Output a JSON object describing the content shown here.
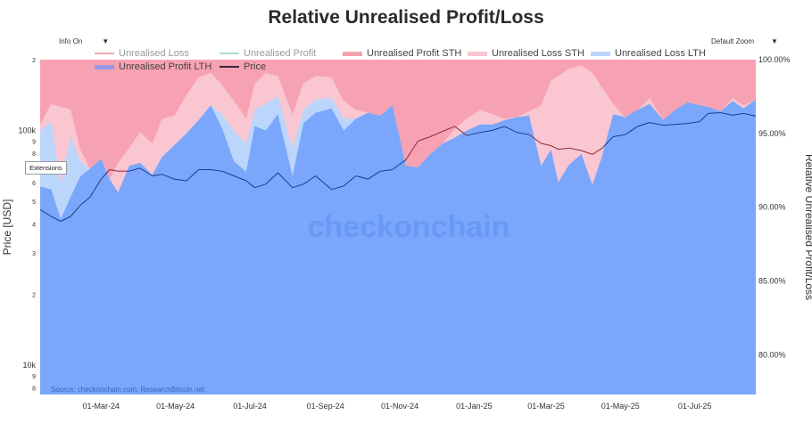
{
  "title": "Relative Unrealised Profit/Loss",
  "controls": {
    "info": "Info On",
    "zoom": "Default Zoom",
    "dropdown_glyph": "▼",
    "extensions_button": "Extensions"
  },
  "legend": [
    {
      "label": "Unrealised Loss",
      "color": "#f4a7b3",
      "style": "line",
      "muted": true
    },
    {
      "label": "Unrealised Profit",
      "color": "#a8dccb",
      "style": "line",
      "muted": true
    },
    {
      "label": "Unrealised Profit STH",
      "color": "#f5a3b1",
      "style": "bar",
      "muted": false
    },
    {
      "label": "Unrealised Loss STH",
      "color": "#f9c6d1",
      "style": "bar",
      "muted": false
    },
    {
      "label": "Unrealised Loss LTH",
      "color": "#bcd5fb",
      "style": "bar",
      "muted": false
    },
    {
      "label": "Unrealised Profit LTH",
      "color": "#9b97e6",
      "style": "bar",
      "muted": false
    },
    {
      "label": "Price",
      "color": "#3a2a3a",
      "style": "line",
      "muted": false
    }
  ],
  "watermark": "checkonchain",
  "source": "Source: checkonchain.com, ResearchBitcoin.net",
  "chart_data": {
    "type": "area",
    "title": "Relative Unrealised Profit/Loss",
    "xlabel": "",
    "ylabel_left": "Price [USD]",
    "ylabel_right": "Relative Unrealised Profit/Loss",
    "x_ticks": [
      "01-Mar-24",
      "01-May-24",
      "01-Jul-24",
      "01-Sep-24",
      "01-Nov-24",
      "01-Jan-25",
      "01-Mar-25",
      "01-May-25",
      "01-Jul-25"
    ],
    "x_range": [
      "2024-01-11",
      "2025-08-20"
    ],
    "y_right_ticks": [
      "100.00%",
      "95.00%",
      "90.00%",
      "85.00%",
      "80.00%"
    ],
    "y_right_range": [
      77.3,
      100
    ],
    "y_left_scale": "log",
    "y_left_ticks": [
      "2",
      "100k",
      "9",
      "8",
      "6",
      "5",
      "4",
      "3",
      "2",
      "10k",
      "9",
      "8"
    ],
    "y_left_range": [
      7500,
      200000
    ],
    "grid": false,
    "legend_position": "top",
    "colors": {
      "profit_lth": "#7aa7fb",
      "loss_lth": "#bcd5fb",
      "loss_sth": "#f9c6d1",
      "profit_sth": "#f7a2b2",
      "price_above": "#8a2a3e",
      "price_below": "#1e3a8a"
    },
    "dates": [
      "2024-01-11",
      "2024-01-20",
      "2024-01-28",
      "2024-02-05",
      "2024-02-13",
      "2024-02-21",
      "2024-03-01",
      "2024-03-08",
      "2024-03-15",
      "2024-03-24",
      "2024-04-02",
      "2024-04-12",
      "2024-04-20",
      "2024-04-30",
      "2024-05-10",
      "2024-05-20",
      "2024-05-30",
      "2024-06-08",
      "2024-06-18",
      "2024-06-28",
      "2024-07-05",
      "2024-07-14",
      "2024-07-24",
      "2024-08-05",
      "2024-08-14",
      "2024-08-24",
      "2024-09-06",
      "2024-09-16",
      "2024-09-26",
      "2024-10-06",
      "2024-10-16",
      "2024-10-26",
      "2024-11-06",
      "2024-11-16",
      "2024-11-26",
      "2024-12-06",
      "2024-12-16",
      "2024-12-26",
      "2025-01-06",
      "2025-01-16",
      "2025-01-26",
      "2025-02-05",
      "2025-02-15",
      "2025-02-25",
      "2025-03-05",
      "2025-03-11",
      "2025-03-20",
      "2025-03-30",
      "2025-04-08",
      "2025-04-16",
      "2025-04-25",
      "2025-05-05",
      "2025-05-15",
      "2025-05-25",
      "2025-06-05",
      "2025-06-15",
      "2025-06-25",
      "2025-07-05",
      "2025-07-12",
      "2025-07-22",
      "2025-08-01",
      "2025-08-10",
      "2025-08-20"
    ],
    "series": [
      {
        "name": "Unrealised Profit LTH",
        "values": [
          91.4,
          91.2,
          89.2,
          90.7,
          92.1,
          92.6,
          93.3,
          91.9,
          91.0,
          92.8,
          93.0,
          92.2,
          93.4,
          94.2,
          95.0,
          95.9,
          96.9,
          95.4,
          93.1,
          92.4,
          95.5,
          95.2,
          96.3,
          92.1,
          95.7,
          96.4,
          96.7,
          95.2,
          96.0,
          96.4,
          96.2,
          96.9,
          92.8,
          92.7,
          93.6,
          94.3,
          94.7,
          95.2,
          95.6,
          95.6,
          95.9,
          96.1,
          96.2,
          92.8,
          93.9,
          91.7,
          92.9,
          93.6,
          91.5,
          93.5,
          96.3,
          96.1,
          96.6,
          97.0,
          95.9,
          96.6,
          97.1,
          96.9,
          96.8,
          96.5,
          97.2,
          96.7,
          97.3
        ]
      },
      {
        "name": "Unrealised Loss LTH",
        "values": [
          95.2,
          95.8,
          91.6,
          94.8,
          93.1,
          92.6,
          93.3,
          91.9,
          91.0,
          92.8,
          93.0,
          92.2,
          93.4,
          94.2,
          95.0,
          95.9,
          96.9,
          96.3,
          95.2,
          94.3,
          96.6,
          97.0,
          97.5,
          94.0,
          96.6,
          97.3,
          97.4,
          96.0,
          96.0,
          96.4,
          96.2,
          96.9,
          92.8,
          92.7,
          93.6,
          94.3,
          94.7,
          95.2,
          95.6,
          95.6,
          95.9,
          96.1,
          96.2,
          92.8,
          93.9,
          91.7,
          92.9,
          93.6,
          91.5,
          93.5,
          96.3,
          96.1,
          96.6,
          97.0,
          95.9,
          96.6,
          97.1,
          96.9,
          96.8,
          96.5,
          97.2,
          96.7,
          97.3
        ]
      },
      {
        "name": "Unrealised Loss STH",
        "values": [
          95.6,
          97.0,
          96.8,
          96.6,
          93.9,
          92.6,
          93.3,
          91.9,
          93.0,
          94.0,
          95.1,
          94.3,
          96.0,
          96.2,
          97.6,
          98.8,
          99.1,
          98.3,
          97.2,
          96.0,
          98.4,
          99.1,
          98.9,
          96.3,
          98.4,
          98.9,
          98.8,
          97.2,
          96.6,
          96.4,
          96.2,
          96.9,
          92.8,
          92.7,
          93.6,
          94.3,
          95.3,
          96.0,
          96.6,
          96.3,
          96.0,
          96.1,
          96.5,
          96.9,
          98.6,
          98.9,
          99.4,
          99.6,
          99.1,
          98.1,
          97.0,
          96.1,
          96.6,
          97.4,
          95.9,
          96.6,
          97.1,
          96.9,
          96.8,
          96.5,
          97.4,
          96.9,
          97.3
        ]
      },
      {
        "name": "Price",
        "unit": "USD",
        "values": [
          46000,
          43000,
          41000,
          43000,
          48000,
          52000,
          62000,
          68000,
          67000,
          67000,
          69000,
          64000,
          65000,
          62000,
          61000,
          68000,
          68000,
          67000,
          64000,
          61000,
          57000,
          59000,
          66000,
          57000,
          59000,
          64000,
          56000,
          58000,
          64000,
          62000,
          67000,
          68000,
          75000,
          90000,
          94000,
          99000,
          104000,
          95000,
          98000,
          100000,
          104000,
          98000,
          96000,
          88000,
          86000,
          83000,
          84000,
          82000,
          79000,
          84000,
          94000,
          96000,
          104000,
          108000,
          105000,
          106000,
          107000,
          109000,
          118000,
          119000,
          116000,
          118000,
          115000
        ]
      }
    ]
  }
}
